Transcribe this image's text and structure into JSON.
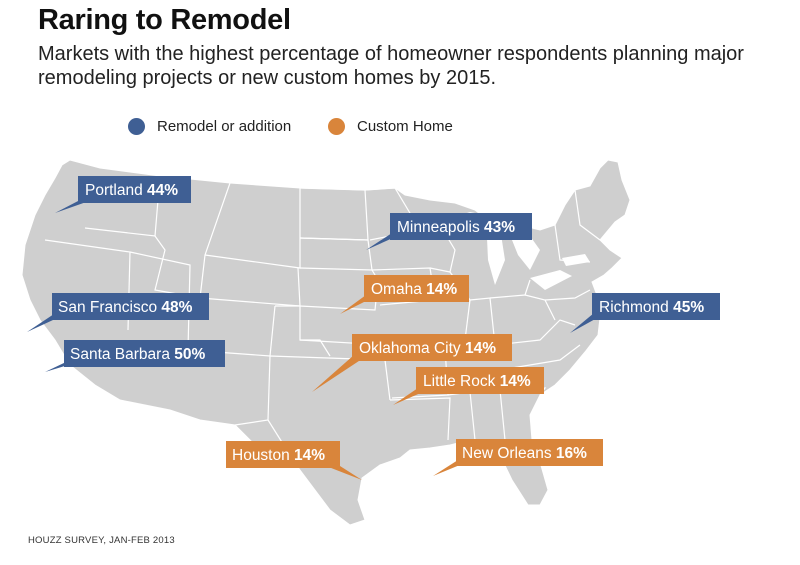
{
  "title": "Raring to Remodel",
  "subtitle": "Markets with the highest percentage of homeowner respondents planning major remodeling projects or new custom homes by 2015.",
  "legend": [
    {
      "label": "Remodel or addition",
      "color": "#3f5f94"
    },
    {
      "label": "Custom Home",
      "color": "#d9853b"
    }
  ],
  "markets": [
    {
      "name": "Portland",
      "value": "44%",
      "category": "Remodel or addition"
    },
    {
      "name": "Minneapolis",
      "value": "43%",
      "category": "Remodel or addition"
    },
    {
      "name": "San Francisco",
      "value": "48%",
      "category": "Remodel or addition"
    },
    {
      "name": "Santa Barbara",
      "value": "50%",
      "category": "Remodel or addition"
    },
    {
      "name": "Richmond",
      "value": "45%",
      "category": "Remodel or addition"
    },
    {
      "name": "Omaha",
      "value": "14%",
      "category": "Custom Home"
    },
    {
      "name": "Oklahoma City",
      "value": "14%",
      "category": "Custom Home"
    },
    {
      "name": "Little Rock",
      "value": "14%",
      "category": "Custom Home"
    },
    {
      "name": "Houston",
      "value": "14%",
      "category": "Custom Home"
    },
    {
      "name": "New Orleans",
      "value": "16%",
      "category": "Custom Home"
    }
  ],
  "source": "HOUZZ SURVEY, JAN-FEB 2013",
  "colors": {
    "map_fill": "#cfcfcf",
    "state_border": "#ffffff"
  }
}
